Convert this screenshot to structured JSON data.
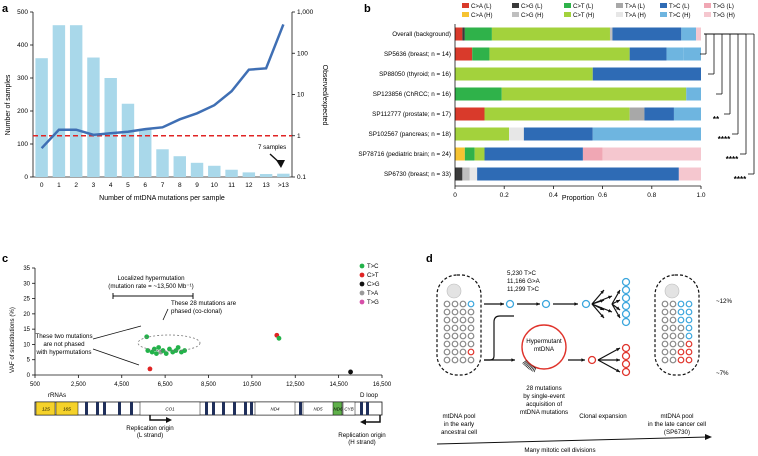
{
  "panel_labels": {
    "a": "a",
    "b": "b",
    "c": "c",
    "d": "d"
  },
  "chart_data": [
    {
      "id": "a",
      "type": "bar",
      "xlabel": "Number of mtDNA mutations per sample",
      "ylabel": "Number of samples",
      "ylabel_right": "Observed/expected",
      "categories": [
        "0",
        "1",
        "2",
        "3",
        "4",
        "5",
        "6",
        "7",
        "8",
        "9",
        "10",
        "11",
        "12",
        "13",
        ">13"
      ],
      "values": [
        360,
        460,
        460,
        362,
        300,
        222,
        146,
        84,
        63,
        43,
        34,
        22,
        14,
        9,
        10
      ],
      "ylim": [
        0,
        500
      ],
      "yticks": [
        "0",
        "100",
        "200",
        "300",
        "400",
        "500"
      ],
      "right_ticks": [
        "0.1",
        "1",
        "10",
        "100",
        "1,000"
      ],
      "series": [
        {
          "name": "Observed/expected",
          "log_values": [
            0.5,
            1.4,
            1.4,
            1.05,
            1.15,
            1.25,
            1.45,
            1.6,
            2.5,
            3.5,
            5.5,
            12,
            40,
            43,
            500
          ]
        }
      ],
      "ref_line": 1,
      "annotation": "7 samples"
    },
    {
      "id": "b",
      "type": "bar",
      "xlabel": "Proportion",
      "xticks": [
        "0",
        "0.2",
        "0.4",
        "0.6",
        "0.8",
        "1.0"
      ],
      "legend": [
        {
          "label": "C>A (L)",
          "color": "#d93a2b"
        },
        {
          "label": "C>G (L)",
          "color": "#3a3a3a"
        },
        {
          "label": "C>T (L)",
          "color": "#2fb24a"
        },
        {
          "label": "T>A (L)",
          "color": "#a8a8a8"
        },
        {
          "label": "T>C (L)",
          "color": "#2e6bb5"
        },
        {
          "label": "T>G (L)",
          "color": "#f0a7b4"
        },
        {
          "label": "C>A (H)",
          "color": "#f6c331"
        },
        {
          "label": "C>G (H)",
          "color": "#bfbfbf"
        },
        {
          "label": "C>T (H)",
          "color": "#a3d23c"
        },
        {
          "label": "T>A (H)",
          "color": "#e7e7e7"
        },
        {
          "label": "T>C (H)",
          "color": "#6eb5e0"
        },
        {
          "label": "T>G (H)",
          "color": "#f5c7cf"
        }
      ],
      "rows": [
        {
          "label": "Overall (background)",
          "segments": [
            [
              0.03,
              "#d93a2b"
            ],
            [
              0.01,
              "#3a3a3a"
            ],
            [
              0.11,
              "#2fb24a"
            ],
            [
              0.48,
              "#a3d23c"
            ],
            [
              0.01,
              "#bfbfbf"
            ],
            [
              0.28,
              "#2e6bb5"
            ],
            [
              0.06,
              "#6eb5e0"
            ],
            [
              0.02,
              "#f5c7cf"
            ]
          ]
        },
        {
          "label": "SP5636 (breast; n = 14)",
          "segments": [
            [
              0.07,
              "#d93a2b"
            ],
            [
              0.07,
              "#2fb24a"
            ],
            [
              0.57,
              "#a3d23c"
            ],
            [
              0.15,
              "#2e6bb5"
            ],
            [
              0.07,
              "#6eb5e0"
            ],
            [
              0.07,
              "#6eb5e0"
            ]
          ]
        },
        {
          "label": "SP88050 (thyroid; n = 16)",
          "segments": [
            [
              0.56,
              "#a3d23c"
            ],
            [
              0.44,
              "#2e6bb5"
            ]
          ]
        },
        {
          "label": "SP123856 (ChRCC; n = 16)",
          "segments": [
            [
              0.19,
              "#2fb24a"
            ],
            [
              0.75,
              "#a3d23c"
            ],
            [
              0.06,
              "#6eb5e0"
            ]
          ]
        },
        {
          "label": "SP112777 (prostate; n = 17)",
          "segments": [
            [
              0.12,
              "#d93a2b"
            ],
            [
              0.59,
              "#a3d23c"
            ],
            [
              0.06,
              "#a8a8a8"
            ],
            [
              0.12,
              "#2e6bb5"
            ],
            [
              0.11,
              "#6eb5e0"
            ]
          ]
        },
        {
          "label": "SP102567 (pancreas; n = 18)",
          "segments": [
            [
              0.22,
              "#a3d23c"
            ],
            [
              0.06,
              "#e7e7e7"
            ],
            [
              0.28,
              "#2e6bb5"
            ],
            [
              0.44,
              "#6eb5e0"
            ]
          ]
        },
        {
          "label": "SP78716 (pediatric brain; n = 24)",
          "segments": [
            [
              0.04,
              "#f6c331"
            ],
            [
              0.04,
              "#2fb24a"
            ],
            [
              0.04,
              "#a3d23c"
            ],
            [
              0.4,
              "#2e6bb5"
            ],
            [
              0.08,
              "#f0a7b4"
            ],
            [
              0.4,
              "#f5c7cf"
            ]
          ]
        },
        {
          "label": "SP6730 (breast; n = 33)",
          "segments": [
            [
              0.03,
              "#3a3a3a"
            ],
            [
              0.03,
              "#bfbfbf"
            ],
            [
              0.03,
              "#e7e7e7"
            ],
            [
              0.82,
              "#2e6bb5"
            ],
            [
              0.09,
              "#f5c7cf"
            ]
          ]
        }
      ],
      "significance": [
        "**",
        "****",
        "****",
        "****"
      ]
    },
    {
      "id": "c",
      "type": "scatter",
      "ylabel": "VAF of substitutions (%)",
      "xticks": [
        "500",
        "2,500",
        "4,500",
        "6,500",
        "8,500",
        "10,500",
        "12,500",
        "14,500",
        "16,500"
      ],
      "yticks": [
        "0",
        "5",
        "10",
        "15",
        "20",
        "25",
        "30",
        "35"
      ],
      "xlim": [
        500,
        16500
      ],
      "ylim": [
        0,
        35
      ],
      "legend": [
        {
          "label": "T>C",
          "color": "#23b24a"
        },
        {
          "label": "C>T",
          "color": "#e02424"
        },
        {
          "label": "C>G",
          "color": "#111111"
        },
        {
          "label": "T>A",
          "color": "#9a9a9a"
        },
        {
          "label": "T>G",
          "color": "#d64fa8"
        }
      ],
      "points": [
        {
          "x": 5650,
          "y": 12.5,
          "c": "#23b24a"
        },
        {
          "x": 5700,
          "y": 8,
          "c": "#23b24a"
        },
        {
          "x": 5800,
          "y": 2,
          "c": "#e02424"
        },
        {
          "x": 5900,
          "y": 7.5,
          "c": "#23b24a"
        },
        {
          "x": 6000,
          "y": 8.5,
          "c": "#23b24a"
        },
        {
          "x": 6100,
          "y": 7,
          "c": "#23b24a"
        },
        {
          "x": 6200,
          "y": 9,
          "c": "#23b24a"
        },
        {
          "x": 6300,
          "y": 7.5,
          "c": "#9a9a9a"
        },
        {
          "x": 6400,
          "y": 8,
          "c": "#23b24a"
        },
        {
          "x": 6550,
          "y": 7,
          "c": "#23b24a"
        },
        {
          "x": 6700,
          "y": 8.5,
          "c": "#23b24a"
        },
        {
          "x": 6850,
          "y": 7.5,
          "c": "#23b24a"
        },
        {
          "x": 7000,
          "y": 8,
          "c": "#23b24a"
        },
        {
          "x": 7100,
          "y": 9,
          "c": "#23b24a"
        },
        {
          "x": 7250,
          "y": 7.5,
          "c": "#23b24a"
        },
        {
          "x": 7400,
          "y": 8,
          "c": "#23b24a"
        },
        {
          "x": 11650,
          "y": 13,
          "c": "#e02424"
        },
        {
          "x": 11750,
          "y": 12,
          "c": "#23b24a"
        },
        {
          "x": 15050,
          "y": 1,
          "c": "#111111"
        }
      ],
      "annotations": {
        "localized": "Localized hypermutation",
        "rate": "(mutation rate = ~13,500 Mb⁻¹)",
        "phased1": "These 28 mutations are",
        "phased2": "phased (co-clonal)",
        "notphased1": "These two mutations",
        "notphased2": "are not phased",
        "notphased3": "with hypermutations"
      },
      "genome": {
        "rrnas": "rRNAs",
        "dloop": "D loop",
        "genes": [
          {
            "label": "12S"
          },
          {
            "label": "16S"
          },
          {
            "label": "CO1"
          },
          {
            "label": "ND4"
          },
          {
            "label": "ND5"
          },
          {
            "label": "ND6"
          },
          {
            "label": "CYB"
          }
        ],
        "origin_l1": "Replication origin",
        "origin_l2": "(L strand)",
        "origin_h1": "Replication origin",
        "origin_h2": "(H strand)"
      }
    }
  ],
  "panel_d": {
    "mut1": "5,230 T>C",
    "mut2": "11,166 G>A",
    "mut3": "11,299 T>C",
    "hyper1": "Hypermutant",
    "hyper2": "mtDNA",
    "single1": "28 mutations",
    "single2": "by single-event",
    "single3": "acquisition of",
    "single4": "mtDNA mutations",
    "pool_early1": "mtDNA pool",
    "pool_early2": "in the early",
    "pool_early3": "ancestral cell",
    "clonal": "Clonal expansion",
    "pool_late1": "mtDNA pool",
    "pool_late2": "in the late cancer cell",
    "pool_late3": "(SP6730)",
    "pct1": "~12%",
    "pct2": "~7%",
    "mitotic": "Many mitotic cell divisions"
  }
}
